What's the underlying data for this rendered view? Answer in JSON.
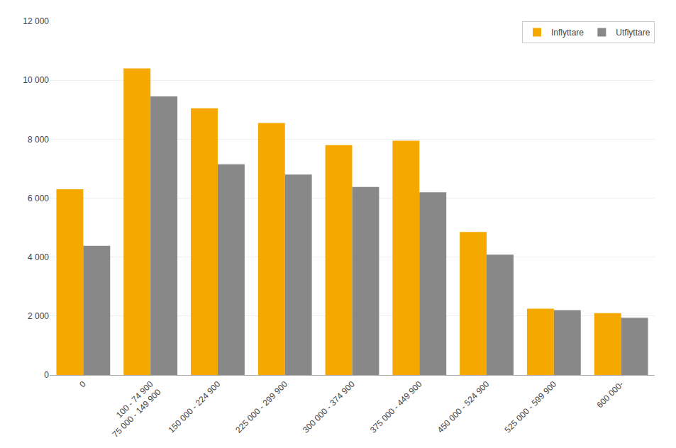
{
  "chart_data": {
    "type": "bar",
    "categories": [
      "0",
      "100 - 74 900\n75 000 - 149 900",
      "150 000 - 224 900",
      "225 000 - 299 900",
      "300 000 - 374 900",
      "375 000 - 449 900",
      "450 000 - 524 900",
      "525 000 - 599 900",
      "600 000-"
    ],
    "series": [
      {
        "name": "Inflyttare",
        "color": "#F5A800",
        "values": [
          6300,
          10400,
          9050,
          8550,
          7800,
          7950,
          4850,
          2250,
          2100
        ]
      },
      {
        "name": "Utflyttare",
        "color": "#888888",
        "values": [
          4380,
          9450,
          7150,
          6800,
          6380,
          6200,
          4080,
          2200,
          1940
        ]
      }
    ],
    "ylim": [
      0,
      12000
    ],
    "yticks": [
      0,
      {
        "value": 2000,
        "label": "2 000"
      },
      {
        "value": 4000,
        "label": "4 000"
      },
      {
        "value": 6000,
        "label": "6 000"
      },
      {
        "value": 8000,
        "label": "8 000"
      },
      {
        "value": 10000,
        "label": "10 000"
      },
      {
        "value": 12000,
        "label": "12 000"
      }
    ],
    "grid": true,
    "legend": "upper right"
  }
}
